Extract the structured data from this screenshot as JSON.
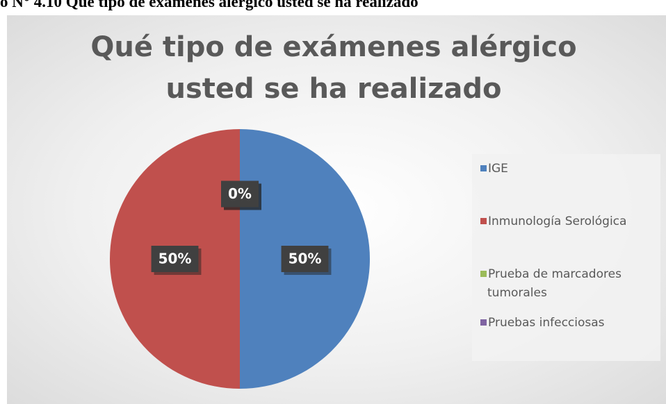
{
  "caption": "o N° 4.10 Qué tipo de exámenes alérgico usted se ha realizado",
  "chart_data": {
    "type": "pie",
    "title": "Qué tipo de exámenes alérgico usted se ha realizado",
    "categories": [
      "IGE",
      "Inmunología Serológica",
      "Prueba de marcadores tumorales",
      "Pruebas infecciosas"
    ],
    "values": [
      50,
      50,
      0,
      0
    ],
    "value_labels": [
      "50%",
      "50%",
      "0%",
      "0%"
    ],
    "colors": [
      "#4f81bd",
      "#c0504d",
      "#9bbb59",
      "#8064a2"
    ],
    "legend": "right"
  }
}
